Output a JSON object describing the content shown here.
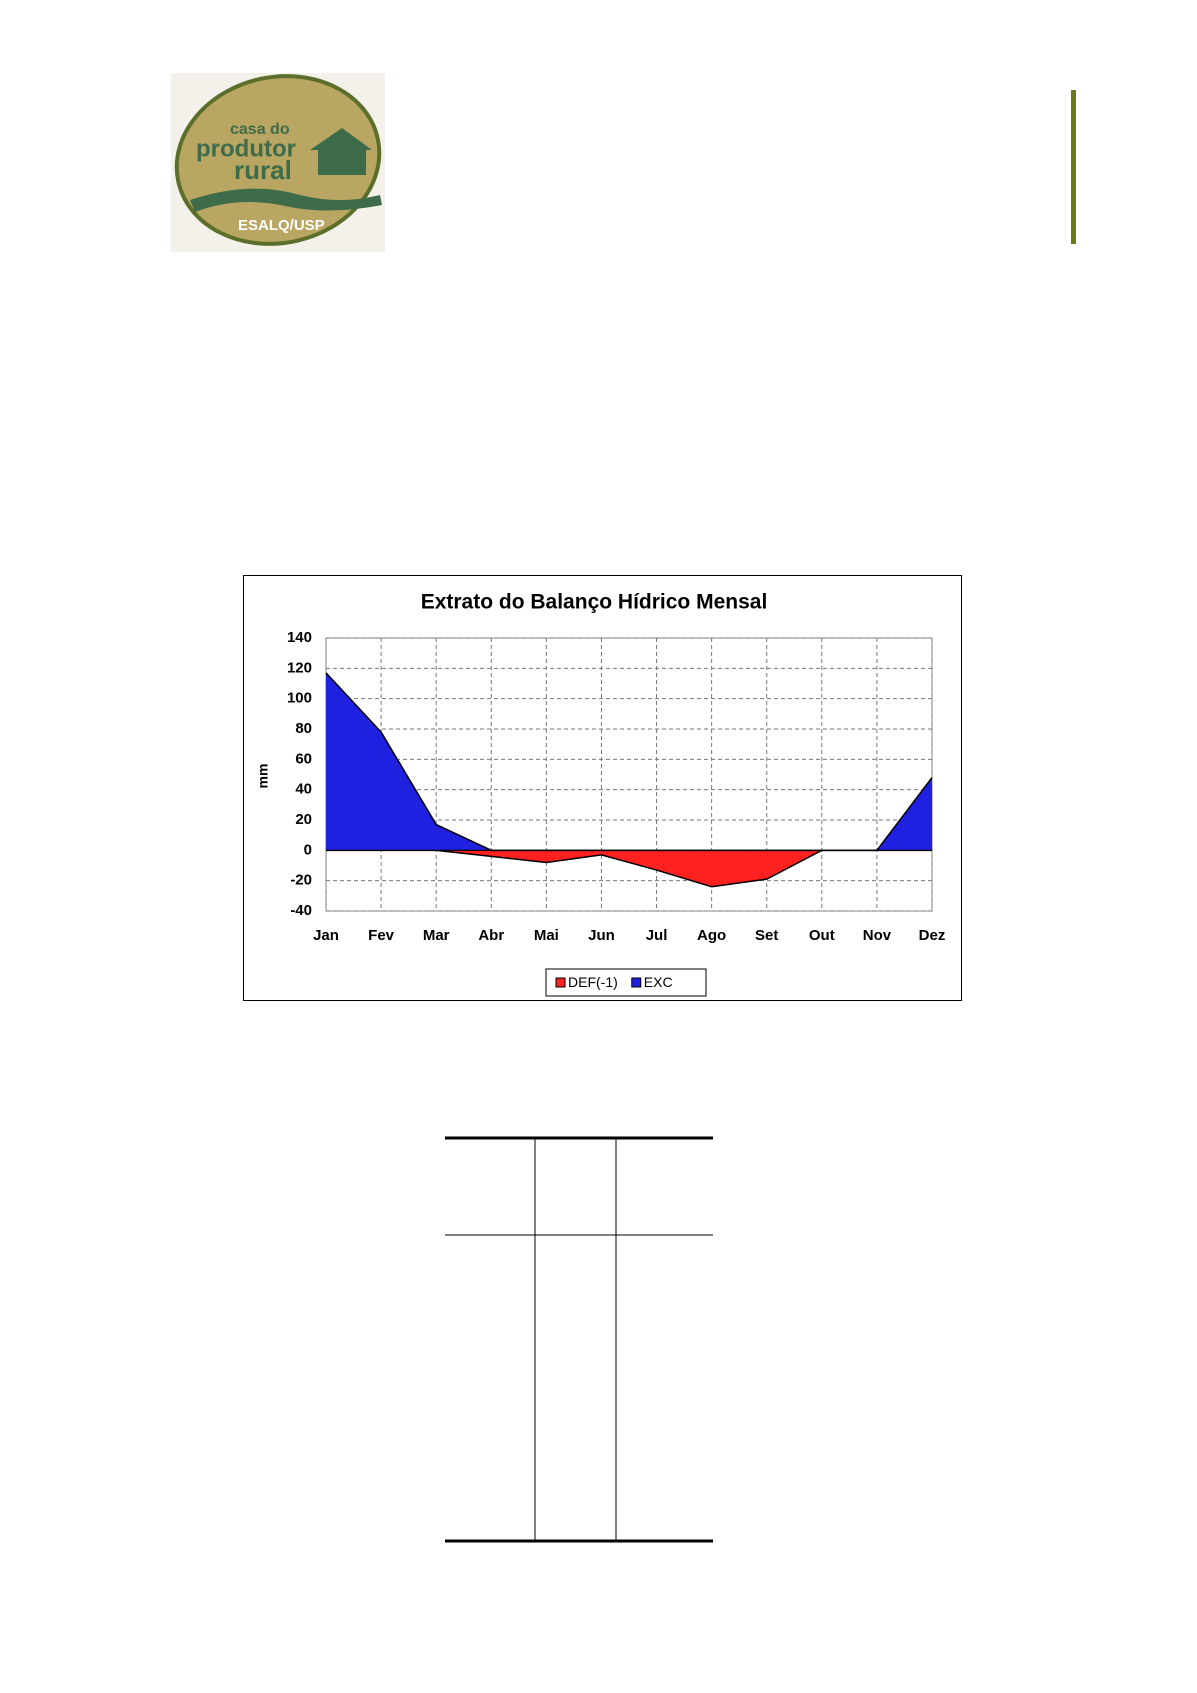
{
  "header": {
    "logo": {
      "line1": "casa do",
      "line2": "produtor",
      "line3": "rural",
      "line4": "ESALQ/USP"
    }
  },
  "chart_data": {
    "type": "area",
    "title": "Extrato do Balanço Hídrico Mensal",
    "y_label": "mm",
    "categories": [
      "Jan",
      "Fev",
      "Mar",
      "Abr",
      "Mai",
      "Jun",
      "Jul",
      "Ago",
      "Set",
      "Out",
      "Nov",
      "Dez"
    ],
    "series": [
      {
        "name": "DEF(-1)",
        "color": "#ff2020",
        "values": [
          0,
          0,
          0,
          -4,
          -8,
          -3,
          -13,
          -24,
          -19,
          0,
          0,
          0
        ]
      },
      {
        "name": "EXC",
        "color": "#2020e0",
        "values": [
          117,
          78,
          17,
          0,
          0,
          0,
          0,
          0,
          0,
          0,
          0,
          48
        ]
      }
    ],
    "ylim": [
      -40,
      140
    ],
    "yticks": [
      -40,
      -20,
      0,
      20,
      40,
      60,
      80,
      100,
      120,
      140
    ],
    "grid": true,
    "legend": "bottom"
  }
}
